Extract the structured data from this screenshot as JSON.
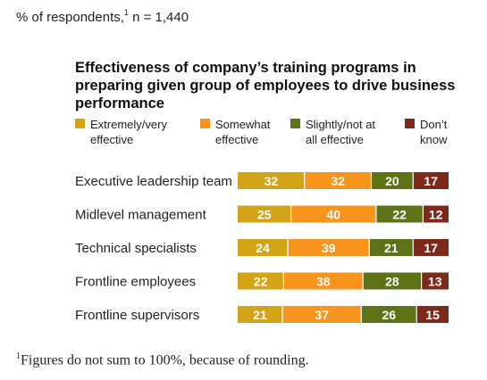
{
  "header": {
    "respondents_prefix": "% of respondents,",
    "footnote_marker": "1",
    "respondents_n": "n = 1,440"
  },
  "footnote": {
    "marker": "1",
    "text": "Figures do not sum to 100%, because of rounding."
  },
  "chart_data": {
    "type": "bar",
    "orientation": "horizontal",
    "stacked": true,
    "title": "Effectiveness of company’s training programs in preparing given group of employees to drive business performance",
    "categories": [
      "Executive leadership team",
      "Midlevel management",
      "Technical specialists",
      "Frontline employees",
      "Frontline supervisors"
    ],
    "series": [
      {
        "name": "Extremely/very effective",
        "color": "#d4a418",
        "values": [
          32,
          25,
          24,
          22,
          21
        ]
      },
      {
        "name": "Somewhat effective",
        "color": "#f7941d",
        "values": [
          32,
          40,
          39,
          38,
          37
        ]
      },
      {
        "name": "Slightly/not at all effective",
        "color": "#5e7318",
        "values": [
          20,
          22,
          21,
          28,
          26
        ]
      },
      {
        "name": "Don’t know",
        "color": "#7d2a1c",
        "values": [
          17,
          12,
          17,
          13,
          15
        ]
      }
    ],
    "legend_position": "top",
    "grid": false
  }
}
